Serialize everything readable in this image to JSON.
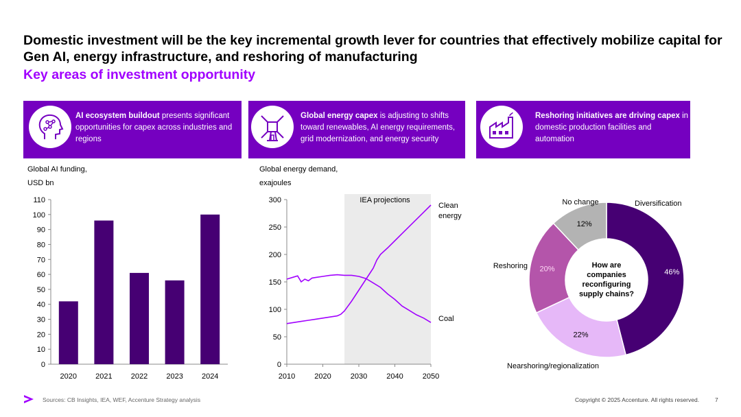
{
  "header": {
    "title": "Domestic investment will be the key incremental growth lever for countries that effectively mobilize capital for Gen AI, energy infrastructure, and reshoring of manufacturing",
    "subtitle": "Key areas of investment opportunity"
  },
  "cards": [
    {
      "icon": "brain-head-icon",
      "bold": "AI ecosystem buildout",
      "rest": " presents significant opportunities for capex across industries and regions"
    },
    {
      "icon": "windmill-icon",
      "bold": "Global energy capex",
      "rest": " is adjusting to shifts toward renewables, AI energy requirements, grid modernization, and energy security"
    },
    {
      "icon": "factory-icon",
      "bold": "Reshoring initiatives are driving capex",
      "rest": " in domestic production facilities and automation"
    }
  ],
  "colors": {
    "purple_dark": "#460073",
    "purple_card": "#7500c0",
    "accent": "#a100ff",
    "light_purple": "#e6b8f8",
    "mid_purple": "#b455aa",
    "gray": "#b3b3b3",
    "line": "#a100ff",
    "shade": "#ebebeb"
  },
  "chart_data": [
    {
      "type": "bar",
      "label_line1": "Global AI funding,",
      "label_line2": "USD bn",
      "categories": [
        "2020",
        "2021",
        "2022",
        "2023",
        "2024"
      ],
      "values": [
        42,
        96,
        61,
        56,
        100
      ],
      "ylim": [
        0,
        110
      ],
      "yticks": [
        "0",
        "10",
        "20",
        "30",
        "40",
        "50",
        "60",
        "70",
        "80",
        "90",
        "100",
        "110"
      ]
    },
    {
      "type": "line",
      "label_line1": "Global energy demand,",
      "label_line2": "exajoules",
      "xlim": [
        2010,
        2050
      ],
      "ylim": [
        0,
        300
      ],
      "xticks": [
        "2010",
        "2020",
        "2030",
        "2040",
        "2050"
      ],
      "yticks": [
        "0",
        "50",
        "100",
        "150",
        "200",
        "250",
        "300"
      ],
      "projection_label": "IEA projections",
      "projection_start": 2026,
      "series": [
        {
          "name_line1": "Clean",
          "name_line2": "energy",
          "x": [
            2010,
            2012,
            2014,
            2016,
            2018,
            2020,
            2022,
            2024,
            2025,
            2026,
            2028,
            2030,
            2032,
            2034,
            2035,
            2036,
            2038,
            2040,
            2042,
            2044,
            2046,
            2048,
            2050
          ],
          "y": [
            74,
            76,
            78,
            80,
            82,
            84,
            86,
            88,
            91,
            97,
            115,
            135,
            155,
            175,
            190,
            200,
            212,
            225,
            238,
            251,
            264,
            277,
            290
          ]
        },
        {
          "name_line1": "Coal",
          "name_line2": "",
          "x": [
            2010,
            2012,
            2013,
            2014,
            2015,
            2016,
            2017,
            2018,
            2020,
            2022,
            2024,
            2026,
            2028,
            2030,
            2032,
            2034,
            2036,
            2038,
            2040,
            2042,
            2044,
            2046,
            2048,
            2050
          ],
          "y": [
            155,
            159,
            161,
            150,
            155,
            152,
            157,
            158,
            160,
            162,
            163,
            162,
            162,
            160,
            156,
            148,
            140,
            128,
            118,
            106,
            98,
            90,
            84,
            76
          ]
        }
      ]
    },
    {
      "type": "pie",
      "center_label": [
        "How are",
        "companies",
        "reconfiguring",
        "supply chains?"
      ],
      "slices": [
        {
          "name": "Diversification",
          "value": 46,
          "pct": "46%",
          "color": "#460073"
        },
        {
          "name": "Nearshoring/regionalization",
          "value": 22,
          "pct": "22%",
          "color": "#e6b8f8"
        },
        {
          "name": "Reshoring",
          "value": 20,
          "pct": "20%",
          "color": "#b455aa"
        },
        {
          "name": "No change",
          "value": 12,
          "pct": "12%",
          "color": "#b3b3b3"
        }
      ]
    }
  ],
  "footer": {
    "sources": "Sources: CB Insights, IEA, WEF, Accenture Strategy analysis",
    "copyright": "Copyright © 2025 Accenture. All rights reserved.",
    "page": "7"
  }
}
